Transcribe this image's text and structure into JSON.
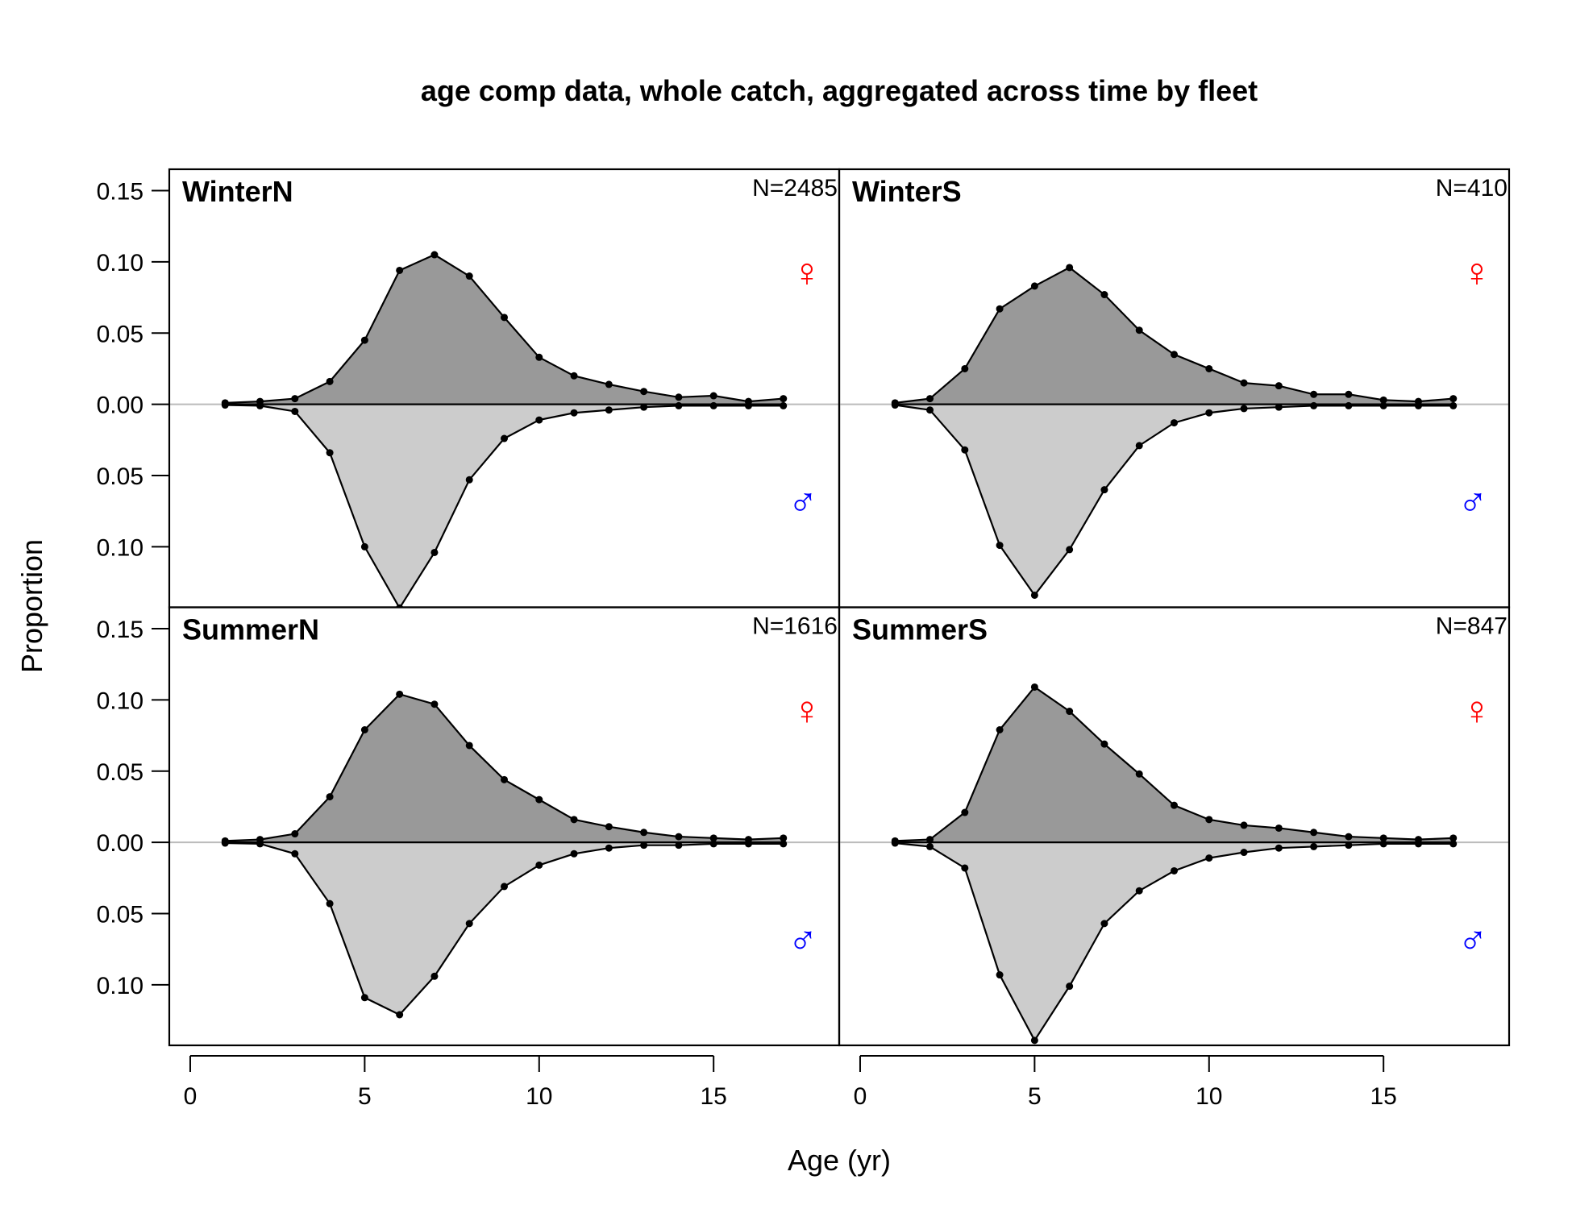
{
  "chart_data": {
    "type": "area",
    "title": "age comp data, whole catch, aggregated across time by fleet",
    "xlabel": "Age (yr)",
    "ylabel": "Proportion",
    "x_ticks": [
      0,
      5,
      10,
      15
    ],
    "y_tick_labels": [
      "0.15",
      "0.10",
      "0.05",
      "0.00",
      "0.05",
      "0.10"
    ],
    "y_tick_values": [
      0.15,
      0.1,
      0.05,
      0.0,
      -0.05,
      -0.1
    ],
    "xlim": [
      -0.6,
      18.6
    ],
    "ylim": [
      -0.1425,
      0.165
    ],
    "ages": [
      1,
      2,
      3,
      4,
      5,
      6,
      7,
      8,
      9,
      10,
      11,
      12,
      13,
      14,
      15,
      16,
      17
    ],
    "colors": {
      "female_fill": "#999999",
      "male_fill": "#cccccc",
      "line": "#000000",
      "female_symbol": "#ff0000",
      "male_symbol": "#0000ff",
      "zero_line_grey": "#bbbbbb"
    },
    "female_symbol": "♀",
    "male_symbol": "♂",
    "panels": [
      {
        "name": "WinterN",
        "n_label": "N=2485",
        "female": [
          0.001,
          0.002,
          0.004,
          0.016,
          0.045,
          0.094,
          0.105,
          0.09,
          0.061,
          0.033,
          0.02,
          0.014,
          0.009,
          0.005,
          0.006,
          0.002,
          0.004
        ],
        "male": [
          0.0005,
          0.001,
          0.005,
          0.034,
          0.1,
          0.143,
          0.104,
          0.053,
          0.024,
          0.011,
          0.006,
          0.004,
          0.002,
          0.001,
          0.001,
          0.001,
          0.001
        ]
      },
      {
        "name": "WinterS",
        "n_label": "N=410",
        "female": [
          0.001,
          0.004,
          0.025,
          0.067,
          0.083,
          0.096,
          0.077,
          0.052,
          0.035,
          0.025,
          0.015,
          0.013,
          0.007,
          0.007,
          0.003,
          0.002,
          0.004
        ],
        "male": [
          0.0005,
          0.004,
          0.032,
          0.099,
          0.134,
          0.102,
          0.06,
          0.029,
          0.013,
          0.006,
          0.003,
          0.002,
          0.001,
          0.001,
          0.001,
          0.001,
          0.001
        ]
      },
      {
        "name": "SummerN",
        "n_label": "N=1616",
        "female": [
          0.001,
          0.002,
          0.006,
          0.032,
          0.079,
          0.104,
          0.097,
          0.068,
          0.044,
          0.03,
          0.016,
          0.011,
          0.007,
          0.004,
          0.003,
          0.002,
          0.003
        ],
        "male": [
          0.0005,
          0.001,
          0.008,
          0.043,
          0.109,
          0.121,
          0.094,
          0.057,
          0.031,
          0.016,
          0.008,
          0.004,
          0.002,
          0.002,
          0.001,
          0.001,
          0.001
        ]
      },
      {
        "name": "SummerS",
        "n_label": "N=847",
        "female": [
          0.001,
          0.002,
          0.021,
          0.079,
          0.109,
          0.092,
          0.069,
          0.048,
          0.026,
          0.016,
          0.012,
          0.01,
          0.007,
          0.004,
          0.003,
          0.002,
          0.003
        ],
        "male": [
          0.0005,
          0.003,
          0.018,
          0.093,
          0.139,
          0.101,
          0.057,
          0.034,
          0.02,
          0.011,
          0.007,
          0.004,
          0.003,
          0.002,
          0.001,
          0.001,
          0.001
        ]
      }
    ]
  }
}
